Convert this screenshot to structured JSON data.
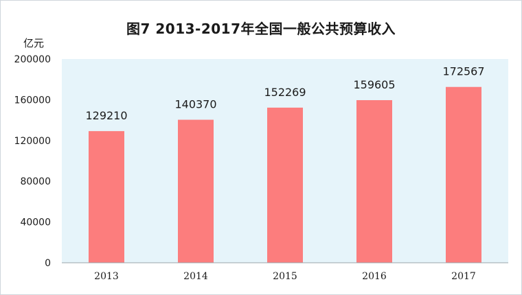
{
  "chart_data": {
    "type": "bar",
    "title": "图7   2013-2017年全国一般公共预算收入",
    "unit": "亿元",
    "categories": [
      "2013",
      "2014",
      "2015",
      "2016",
      "2017"
    ],
    "values": [
      129210,
      140370,
      152269,
      159605,
      172567
    ],
    "data_labels": [
      "129210",
      "140370",
      "152269",
      "159605",
      "172567"
    ],
    "ylim": [
      0,
      200000
    ],
    "yticks": [
      "0",
      "40000",
      "80000",
      "120000",
      "160000",
      "200000"
    ],
    "ytick_values": [
      0,
      40000,
      80000,
      120000,
      160000,
      200000
    ],
    "bar_color": "#fc7d7d",
    "plot_bg": "#e6f4fa",
    "grid": false
  }
}
